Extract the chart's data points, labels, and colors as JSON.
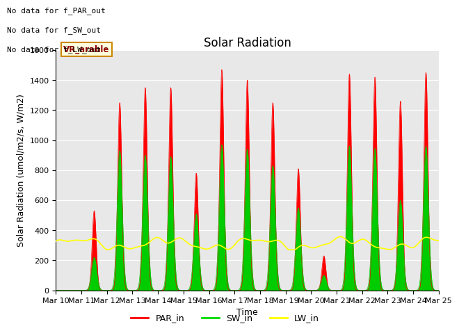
{
  "title": "Solar Radiation",
  "ylabel": "Solar Radiation (umol/m2/s, W/m2)",
  "xlabel": "Time",
  "ylim": [
    0,
    1600
  ],
  "yticks": [
    0,
    200,
    400,
    600,
    800,
    1000,
    1200,
    1400,
    1600
  ],
  "xtick_labels": [
    "Mar 10",
    "Mar 11",
    "Mar 12",
    "Mar 13",
    "Mar 14",
    "Mar 15",
    "Mar 16",
    "Mar 17",
    "Mar 18",
    "Mar 19",
    "Mar 20",
    "Mar 21",
    "Mar 22",
    "Mar 23",
    "Mar 24",
    "Mar 25"
  ],
  "annotation_lines": [
    "No data for f_PAR_out",
    "No data for f_SW_out",
    "No data for f_LW_out"
  ],
  "vr_label": "VR_arable",
  "legend_entries": [
    "PAR_in",
    "SW_in",
    "LW_in"
  ],
  "legend_colors": [
    "red",
    "#00dd00",
    "yellow"
  ],
  "background_color": "#e8e8e8",
  "par_color": "red",
  "sw_color": "#00cc00",
  "lw_color": "yellow",
  "daily_peaks_PAR": [
    0,
    530,
    1250,
    1350,
    1350,
    780,
    1470,
    1400,
    1250,
    810,
    230,
    1440,
    1420,
    1260,
    1450,
    0
  ],
  "daily_peaks_SW": [
    0,
    220,
    930,
    900,
    890,
    510,
    970,
    940,
    830,
    550,
    100,
    960,
    945,
    600,
    960,
    0
  ],
  "lw_base": 310,
  "title_fontsize": 12,
  "label_fontsize": 9,
  "tick_fontsize": 8
}
